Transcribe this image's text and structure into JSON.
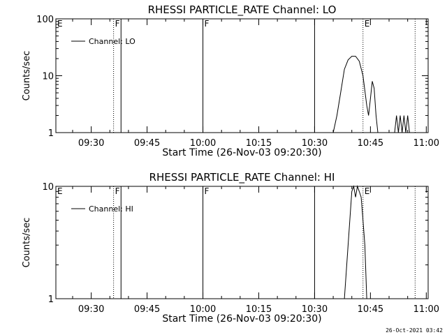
{
  "chart_data": [
    {
      "type": "line",
      "title": "RHESSI PARTICLE_RATE Channel: LO",
      "xlabel": "Start Time (26-Nov-03 09:20:30)",
      "ylabel": "Counts/sec",
      "yscale": "log",
      "ylim": [
        1,
        100
      ],
      "xlim_minutes_from_start": [
        0,
        100
      ],
      "x_tick_labels": [
        "09:30",
        "09:45",
        "10:00",
        "10:15",
        "10:30",
        "10:45",
        "11:00"
      ],
      "y_tick_labels": [
        "1",
        "10",
        "100"
      ],
      "legend": {
        "label": "Channel: LO",
        "placement": "top-left"
      },
      "event_markers": [
        {
          "label": "E",
          "time": "09:20:30",
          "style": "none"
        },
        {
          "label": "F",
          "time": "09:36",
          "style": "dotted"
        },
        {
          "label": "",
          "time": "09:38",
          "style": "solid"
        },
        {
          "label": "F",
          "time": "10:00",
          "style": "solid"
        },
        {
          "label": "",
          "time": "10:30",
          "style": "solid"
        },
        {
          "label": "E",
          "time": "10:43",
          "style": "dotted"
        },
        {
          "label": "",
          "time": "10:57",
          "style": "dotted"
        }
      ],
      "series": [
        {
          "name": "Channel: LO",
          "points": [
            [
              "10:35:00",
              1
            ],
            [
              "10:36:00",
              2
            ],
            [
              "10:37:00",
              5
            ],
            [
              "10:38:00",
              13
            ],
            [
              "10:39:00",
              19
            ],
            [
              "10:40:00",
              22
            ],
            [
              "10:41:00",
              22
            ],
            [
              "10:42:00",
              18
            ],
            [
              "10:43:00",
              10
            ],
            [
              "10:44:00",
              3
            ],
            [
              "10:44:30",
              2
            ],
            [
              "10:45:00",
              4
            ],
            [
              "10:45:30",
              8
            ],
            [
              "10:46:00",
              6
            ],
            [
              "10:46:30",
              2
            ],
            [
              "10:47:00",
              1
            ],
            [
              "10:51:30",
              1
            ],
            [
              "10:52:00",
              2
            ],
            [
              "10:52:30",
              1
            ],
            [
              "10:53:00",
              2
            ],
            [
              "10:53:30",
              1
            ],
            [
              "10:54:00",
              2
            ],
            [
              "10:54:30",
              1
            ],
            [
              "10:55:00",
              2
            ],
            [
              "10:55:30",
              1
            ]
          ]
        }
      ]
    },
    {
      "type": "line",
      "title": "RHESSI PARTICLE_RATE Channel: HI",
      "xlabel": "Start Time (26-Nov-03 09:20:30)",
      "ylabel": "Counts/sec",
      "yscale": "log",
      "ylim": [
        1,
        10
      ],
      "xlim_minutes_from_start": [
        0,
        100
      ],
      "x_tick_labels": [
        "09:30",
        "09:45",
        "10:00",
        "10:15",
        "10:30",
        "10:45",
        "11:00"
      ],
      "y_tick_labels": [
        "1",
        "10"
      ],
      "legend": {
        "label": "Channel: HI",
        "placement": "top-left"
      },
      "event_markers": [
        {
          "label": "E",
          "time": "09:20:30",
          "style": "none"
        },
        {
          "label": "F",
          "time": "09:36",
          "style": "dotted"
        },
        {
          "label": "",
          "time": "09:38",
          "style": "solid"
        },
        {
          "label": "F",
          "time": "10:00",
          "style": "solid"
        },
        {
          "label": "",
          "time": "10:30",
          "style": "solid"
        },
        {
          "label": "E",
          "time": "10:43",
          "style": "dotted"
        },
        {
          "label": "",
          "time": "10:57",
          "style": "dotted"
        }
      ],
      "series": [
        {
          "name": "Channel: HI",
          "points": [
            [
              "10:38:00",
              1
            ],
            [
              "10:39:00",
              3
            ],
            [
              "10:40:00",
              9
            ],
            [
              "10:40:30",
              10
            ],
            [
              "10:41:00",
              8
            ],
            [
              "10:41:30",
              10
            ],
            [
              "10:42:00",
              9
            ],
            [
              "10:42:30",
              8
            ],
            [
              "10:43:00",
              5
            ],
            [
              "10:43:30",
              3
            ],
            [
              "10:44:00",
              1
            ]
          ]
        }
      ]
    }
  ],
  "footer": {
    "timestamp": "26-Oct-2021 03:42"
  }
}
